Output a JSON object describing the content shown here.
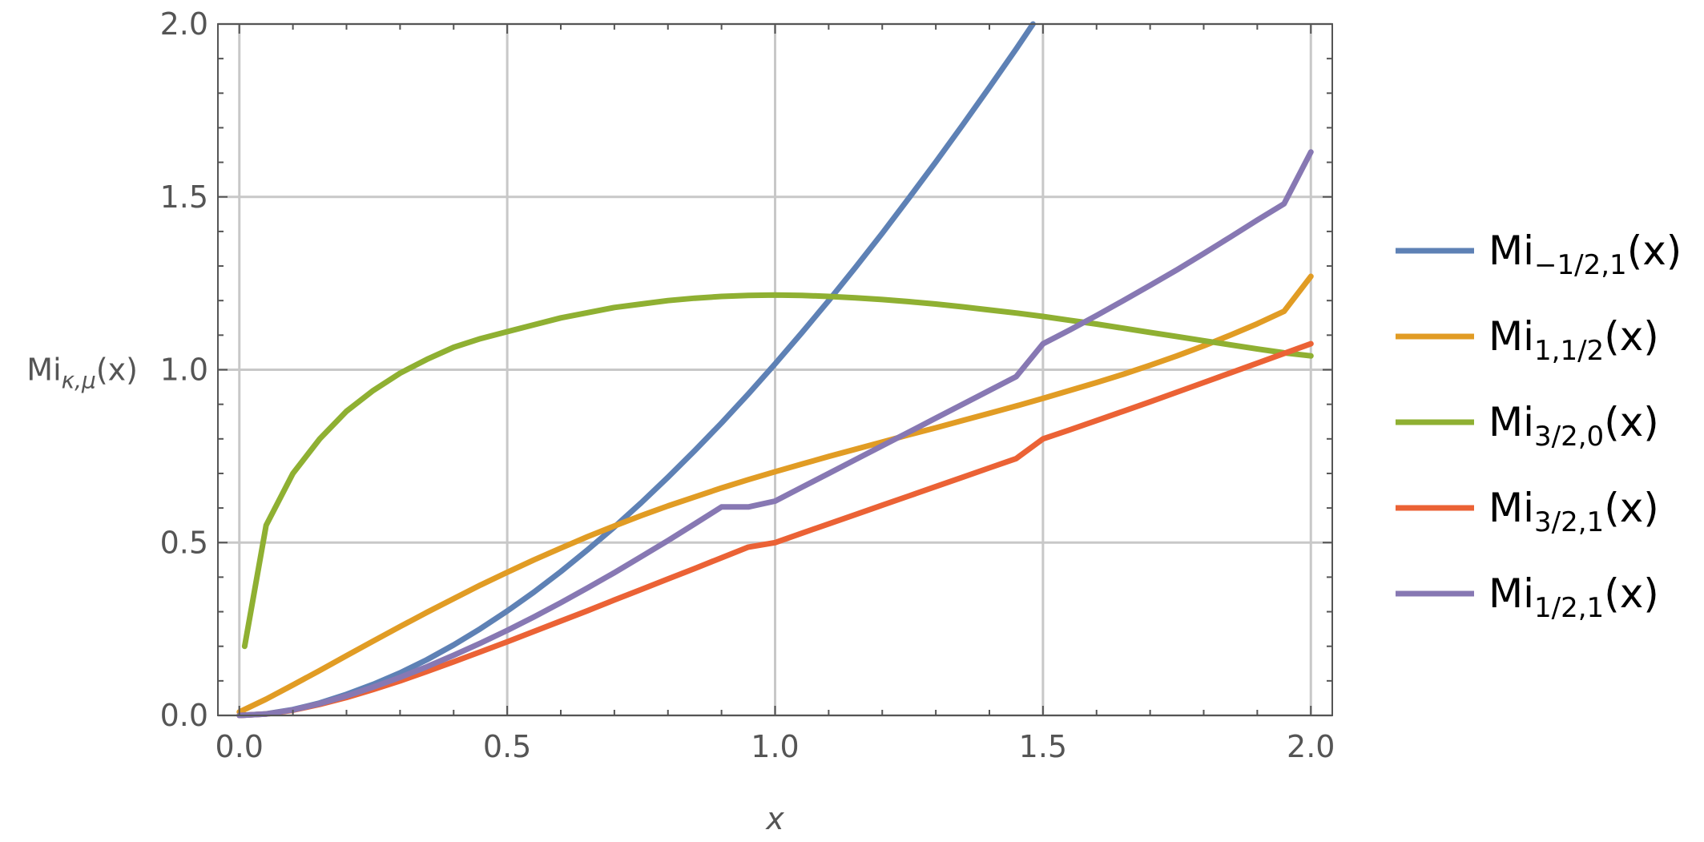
{
  "chart_data": {
    "type": "line",
    "title": "",
    "xlabel": "x",
    "ylabel": "Miκ,μ(x)",
    "xlim": [
      -0.04,
      2.04
    ],
    "ylim": [
      0,
      2.0
    ],
    "grid": true,
    "legend_position": "right",
    "x_ticks": [
      "0.0",
      "0.5",
      "1.0",
      "1.5",
      "2.0"
    ],
    "y_ticks": [
      "0.0",
      "0.5",
      "1.0",
      "1.5",
      "2.0"
    ],
    "x": [
      0.0,
      0.05,
      0.1,
      0.15,
      0.2,
      0.25,
      0.3,
      0.35,
      0.4,
      0.45,
      0.5,
      0.55,
      0.6,
      0.65,
      0.7,
      0.75,
      0.8,
      0.85,
      0.9,
      0.95,
      1.0,
      1.05,
      1.1,
      1.15,
      1.2,
      1.25,
      1.3,
      1.35,
      1.4,
      1.45,
      1.5,
      1.55,
      1.6,
      1.65,
      1.7,
      1.75,
      1.8,
      1.85,
      1.9,
      1.95,
      2.0
    ],
    "series": [
      {
        "name": "Mi−1/2,1(x)",
        "legend_base": "Mi",
        "legend_sub": "−1/2,1",
        "legend_suffix": "(x)",
        "color": "#5e81b5",
        "values": [
          0.0,
          0.0045,
          0.017,
          0.036,
          0.061,
          0.09,
          0.123,
          0.161,
          0.204,
          0.251,
          0.302,
          0.357,
          0.416,
          0.479,
          0.545,
          0.615,
          0.689,
          0.766,
          0.846,
          0.93,
          1.017,
          1.107,
          1.2,
          1.296,
          1.395,
          1.497,
          1.601,
          1.708,
          1.817,
          1.928,
          2.043,
          null,
          null,
          null,
          null,
          null,
          null,
          null,
          null,
          null,
          null
        ]
      },
      {
        "name": "Mi1,1/2(x)",
        "legend_base": "Mi",
        "legend_sub": "1,1/2",
        "legend_suffix": "(x)",
        "color": "#e19c24",
        "values": [
          0.01,
          0.047,
          0.088,
          0.13,
          0.173,
          0.215,
          0.257,
          0.298,
          0.338,
          0.377,
          0.414,
          0.45,
          0.484,
          0.517,
          0.548,
          0.578,
          0.606,
          0.632,
          0.658,
          0.682,
          0.705,
          0.727,
          0.749,
          0.77,
          0.791,
          0.812,
          0.832,
          0.853,
          0.874,
          0.895,
          0.917,
          0.94,
          0.963,
          0.987,
          1.013,
          1.04,
          1.069,
          1.1,
          1.133,
          1.169,
          1.27
        ]
      },
      {
        "name": "Mi3/2,0(x)",
        "legend_base": "Mi",
        "legend_sub": "3/2,0",
        "legend_suffix": "(x)",
        "color": "#8fb032",
        "values": [
          0.2,
          0.55,
          0.7,
          0.8,
          0.88,
          0.94,
          0.99,
          1.03,
          1.065,
          1.09,
          1.11,
          1.13,
          1.15,
          1.165,
          1.18,
          1.19,
          1.2,
          1.207,
          1.212,
          1.215,
          1.216,
          1.215,
          1.212,
          1.208,
          1.203,
          1.197,
          1.19,
          1.182,
          1.173,
          1.164,
          1.154,
          1.143,
          1.132,
          1.12,
          1.108,
          1.096,
          1.084,
          1.072,
          1.06,
          1.049,
          1.04
        ]
      },
      {
        "name": "Mi3/2,1(x)",
        "legend_base": "Mi",
        "legend_sub": "3/2,1",
        "legend_suffix": "(x)",
        "color": "#eb6235",
        "values": [
          0.0,
          0.004,
          0.015,
          0.032,
          0.052,
          0.075,
          0.1,
          0.127,
          0.155,
          0.184,
          0.213,
          0.243,
          0.273,
          0.303,
          0.334,
          0.364,
          0.395,
          0.425,
          0.456,
          0.487,
          0.5,
          0.527,
          0.554,
          0.581,
          0.608,
          0.635,
          0.662,
          0.689,
          0.716,
          0.743,
          0.8,
          0.826,
          0.853,
          0.88,
          0.907,
          0.935,
          0.963,
          0.991,
          1.019,
          1.047,
          1.075
        ]
      },
      {
        "name": "Mi1/2,1(x)",
        "legend_base": "Mi",
        "legend_sub": "1/2,1",
        "legend_suffix": "(x)",
        "color": "#8778b3",
        "values": [
          0.0,
          0.004,
          0.016,
          0.034,
          0.056,
          0.082,
          0.11,
          0.141,
          0.174,
          0.209,
          0.246,
          0.285,
          0.326,
          0.369,
          0.413,
          0.459,
          0.506,
          0.554,
          0.603,
          0.603,
          0.62,
          0.66,
          0.7,
          0.74,
          0.78,
          0.82,
          0.86,
          0.9,
          0.94,
          0.98,
          1.075,
          1.115,
          1.157,
          1.2,
          1.244,
          1.289,
          1.336,
          1.384,
          1.433,
          1.48,
          1.63
        ]
      }
    ]
  }
}
